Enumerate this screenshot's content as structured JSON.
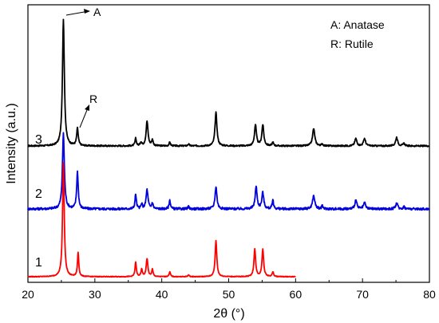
{
  "chart_data": {
    "type": "line",
    "xlabel": "2θ (°)",
    "ylabel": "Intensity (a.u.)",
    "xlim": [
      20,
      80
    ],
    "x_ticks": [
      20,
      30,
      40,
      50,
      60,
      70,
      80
    ],
    "y_ticks_shown": false,
    "grid": false,
    "legend_position": "top-right",
    "legend_entries": [
      "A: Anatase",
      "R: Rutile"
    ],
    "annotations": [
      {
        "text": "A",
        "x": 25.3
      },
      {
        "text": "R",
        "x": 27.4
      }
    ],
    "series": [
      {
        "name": "3",
        "color": "#000000",
        "x_range": [
          20,
          80
        ],
        "baseline": 0,
        "noise": 0.6,
        "peaks": [
          [
            25.3,
            102,
            0.17
          ],
          [
            27.4,
            14,
            0.14
          ],
          [
            36.1,
            6,
            0.12
          ],
          [
            36.9,
            3,
            0.12
          ],
          [
            37.8,
            20,
            0.17
          ],
          [
            38.6,
            5,
            0.12
          ],
          [
            41.2,
            3,
            0.12
          ],
          [
            44.0,
            1.5,
            0.12
          ],
          [
            48.1,
            27,
            0.17
          ],
          [
            54.0,
            17,
            0.17
          ],
          [
            55.1,
            17,
            0.17
          ],
          [
            56.6,
            3,
            0.12
          ],
          [
            62.7,
            14,
            0.2
          ],
          [
            64.0,
            1.5,
            0.12
          ],
          [
            69.0,
            6,
            0.18
          ],
          [
            70.3,
            6,
            0.18
          ],
          [
            75.1,
            7,
            0.18
          ],
          [
            76.2,
            2,
            0.15
          ]
        ]
      },
      {
        "name": "2",
        "color": "#0000dd",
        "x_range": [
          20,
          80
        ],
        "baseline": 0,
        "noise": 0.8,
        "peaks": [
          [
            25.3,
            51,
            0.17
          ],
          [
            27.4,
            25,
            0.14
          ],
          [
            36.1,
            10,
            0.12
          ],
          [
            37.0,
            3,
            0.12
          ],
          [
            37.8,
            13,
            0.17
          ],
          [
            38.6,
            4,
            0.12
          ],
          [
            41.2,
            6,
            0.12
          ],
          [
            44.0,
            1.5,
            0.12
          ],
          [
            48.1,
            15,
            0.17
          ],
          [
            54.1,
            15,
            0.17
          ],
          [
            55.1,
            11,
            0.17
          ],
          [
            56.6,
            6,
            0.12
          ],
          [
            62.7,
            9,
            0.2
          ],
          [
            64.0,
            2,
            0.12
          ],
          [
            69.0,
            6,
            0.18
          ],
          [
            70.3,
            4,
            0.18
          ],
          [
            75.1,
            4,
            0.18
          ],
          [
            76.2,
            1.5,
            0.15
          ]
        ]
      },
      {
        "name": "1",
        "color": "#ff0000",
        "x_range": [
          20,
          60
        ],
        "baseline": 0,
        "noise": 0.3,
        "peaks": [
          [
            25.3,
            95,
            0.15
          ],
          [
            27.5,
            20,
            0.12
          ],
          [
            36.1,
            12,
            0.12
          ],
          [
            37.0,
            6,
            0.12
          ],
          [
            37.8,
            15,
            0.15
          ],
          [
            38.6,
            6,
            0.12
          ],
          [
            41.2,
            4,
            0.12
          ],
          [
            44.0,
            1.5,
            0.12
          ],
          [
            48.1,
            30,
            0.15
          ],
          [
            53.9,
            23,
            0.15
          ],
          [
            55.1,
            23,
            0.15
          ],
          [
            56.6,
            4,
            0.12
          ]
        ]
      }
    ]
  }
}
